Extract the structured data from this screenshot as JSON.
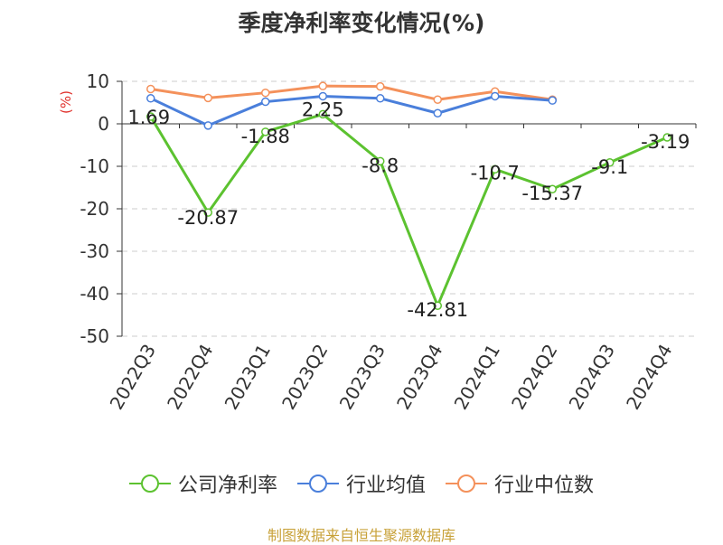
{
  "title": "季度净利率变化情况(%)",
  "source": "制图数据来自恒生聚源数据库",
  "colors": {
    "company": "#5cc230",
    "industry_avg": "#4a7fdb",
    "industry_median": "#f4915b",
    "unit_label": "#e0322d",
    "grid": "#cccccc",
    "axis": "#333333"
  },
  "chart_data": {
    "type": "line",
    "title": "季度净利率变化情况(%)",
    "ylabel": "(%)",
    "xlabel": "",
    "ylim": [
      -50,
      10
    ],
    "yticks": [
      10,
      0,
      -10,
      -20,
      -30,
      -40,
      -50
    ],
    "grid": "horizontal dashed",
    "legend_position": "bottom",
    "categories": [
      "2022Q3",
      "2022Q4",
      "2023Q1",
      "2023Q2",
      "2023Q3",
      "2023Q4",
      "2024Q1",
      "2024Q2",
      "2024Q3",
      "2024Q4"
    ],
    "series": [
      {
        "key": "company",
        "name": "公司净利率",
        "values": [
          1.69,
          -20.87,
          -1.88,
          2.25,
          -8.8,
          -42.81,
          -10.7,
          -15.37,
          -9.1,
          -3.19
        ],
        "labels": [
          "1.69",
          "-20.87",
          "-1.88",
          "2.25",
          "-8.8",
          "-42.81",
          "-10.7",
          "-15.37",
          "-9.1",
          "-3.19"
        ]
      },
      {
        "key": "industry_avg",
        "name": "行业均值",
        "values": [
          6.0,
          -0.4,
          5.2,
          6.5,
          6.0,
          2.5,
          6.5,
          5.5,
          null,
          null
        ]
      },
      {
        "key": "industry_median",
        "name": "行业中位数",
        "values": [
          8.2,
          6.1,
          7.3,
          8.9,
          8.8,
          5.7,
          7.6,
          5.7,
          null,
          null
        ]
      }
    ]
  }
}
